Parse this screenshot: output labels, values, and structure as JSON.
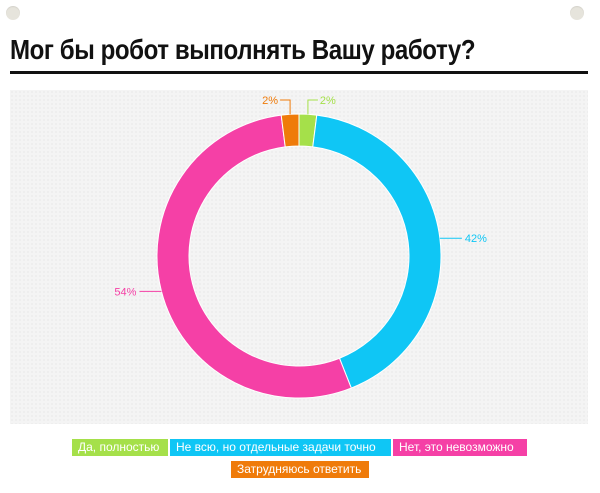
{
  "title": "Мог бы робот выполнять Вашу работу?",
  "chart_data": {
    "type": "pie",
    "variant": "donut",
    "title": "Мог бы робот выполнять Вашу работу?",
    "slices": [
      {
        "name": "Да, полностью",
        "value": 2,
        "label": "2%",
        "color": "#a5e04a"
      },
      {
        "name": "Не всю, но отдельные задачи точно",
        "value": 42,
        "label": "42%",
        "color": "#0fc6f5"
      },
      {
        "name": "Нет, это невозможно",
        "value": 54,
        "label": "54%",
        "color": "#f540a6"
      },
      {
        "name": "Затрудняюсь ответить",
        "value": 2,
        "label": "2%",
        "color": "#ef7b0a"
      }
    ],
    "legend_position": "bottom"
  }
}
